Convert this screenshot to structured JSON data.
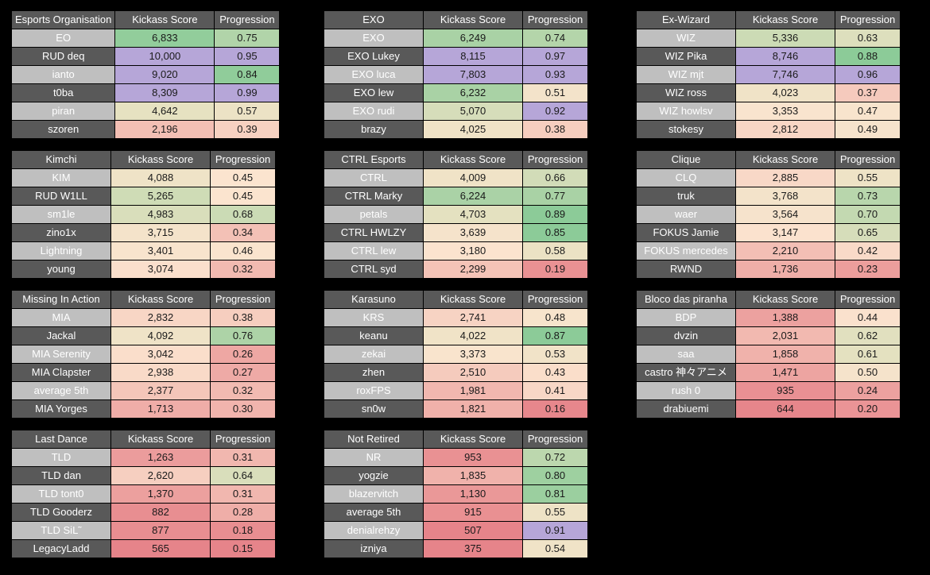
{
  "headers": {
    "score": "Kickass Score",
    "progression": "Progression"
  },
  "colors": {
    "low_red": "#e6848a",
    "mid_peach": "#fbe4cf",
    "mid_tan": "#e8e2c2",
    "green": "#8ccb98",
    "purple": "#b6a6d8"
  },
  "tables": [
    {
      "team": "Esports Organisation",
      "rows": [
        {
          "name": "EO",
          "score": "6,833",
          "prog": "0.75"
        },
        {
          "name": "RUD deq",
          "score": "10,000",
          "prog": "0.95"
        },
        {
          "name": "ianto",
          "score": "9,020",
          "prog": "0.84"
        },
        {
          "name": "t0ba",
          "score": "8,309",
          "prog": "0.99"
        },
        {
          "name": "piran",
          "score": "4,642",
          "prog": "0.57"
        },
        {
          "name": "szoren",
          "score": "2,196",
          "prog": "0.39"
        }
      ]
    },
    {
      "team": "EXO",
      "rows": [
        {
          "name": "EXO",
          "score": "6,249",
          "prog": "0.74"
        },
        {
          "name": "EXO Lukey",
          "score": "8,115",
          "prog": "0.97"
        },
        {
          "name": "EXO luca",
          "score": "7,803",
          "prog": "0.93"
        },
        {
          "name": "EXO lew",
          "score": "6,232",
          "prog": "0.51"
        },
        {
          "name": "EXO rudi",
          "score": "5,070",
          "prog": "0.92"
        },
        {
          "name": "brazy",
          "score": "4,025",
          "prog": "0.38"
        }
      ]
    },
    {
      "team": "Ex-Wizard",
      "rows": [
        {
          "name": "WIZ",
          "score": "5,336",
          "prog": "0.63"
        },
        {
          "name": "WIZ Pika",
          "score": "8,746",
          "prog": "0.88"
        },
        {
          "name": "WIZ mjt",
          "score": "7,746",
          "prog": "0.96"
        },
        {
          "name": "WIZ ross",
          "score": "4,023",
          "prog": "0.37"
        },
        {
          "name": "WIZ howlsv",
          "score": "3,353",
          "prog": "0.47"
        },
        {
          "name": "stokesy",
          "score": "2,812",
          "prog": "0.49"
        }
      ]
    },
    {
      "team": "Kimchi",
      "rows": [
        {
          "name": "KIM",
          "score": "4,088",
          "prog": "0.45"
        },
        {
          "name": "RUD W1LL",
          "score": "5,265",
          "prog": "0.45"
        },
        {
          "name": "sm1le",
          "score": "4,983",
          "prog": "0.68"
        },
        {
          "name": "zino1x",
          "score": "3,715",
          "prog": "0.34"
        },
        {
          "name": "Lightning",
          "score": "3,401",
          "prog": "0.46"
        },
        {
          "name": "young",
          "score": "3,074",
          "prog": "0.32"
        }
      ]
    },
    {
      "team": "CTRL Esports",
      "rows": [
        {
          "name": "CTRL",
          "score": "4,009",
          "prog": "0.66"
        },
        {
          "name": "CTRL Marky",
          "score": "6,224",
          "prog": "0.77"
        },
        {
          "name": "petals",
          "score": "4,703",
          "prog": "0.89"
        },
        {
          "name": "CTRL HWLZY",
          "score": "3,639",
          "prog": "0.85"
        },
        {
          "name": "CTRL lew",
          "score": "3,180",
          "prog": "0.58"
        },
        {
          "name": "CTRL syd",
          "score": "2,299",
          "prog": "0.19"
        }
      ]
    },
    {
      "team": "Clique",
      "rows": [
        {
          "name": "CLQ",
          "score": "2,885",
          "prog": "0.55"
        },
        {
          "name": "truk",
          "score": "3,768",
          "prog": "0.73"
        },
        {
          "name": "waer",
          "score": "3,564",
          "prog": "0.70"
        },
        {
          "name": "FOKUS Jamie",
          "score": "3,147",
          "prog": "0.65"
        },
        {
          "name": "FOKUS mercedes",
          "score": "2,210",
          "prog": "0.42"
        },
        {
          "name": "RWND",
          "score": "1,736",
          "prog": "0.23"
        }
      ]
    },
    {
      "team": "Missing In Action",
      "rows": [
        {
          "name": "MIA",
          "score": "2,832",
          "prog": "0.38"
        },
        {
          "name": "Jackal",
          "score": "4,092",
          "prog": "0.76"
        },
        {
          "name": "MIA Serenity",
          "score": "3,042",
          "prog": "0.26"
        },
        {
          "name": "MIA Clapster",
          "score": "2,938",
          "prog": "0.27"
        },
        {
          "name": "average 5th",
          "score": "2,377",
          "prog": "0.32"
        },
        {
          "name": "MIA Yorges",
          "score": "1,713",
          "prog": "0.30"
        }
      ]
    },
    {
      "team": "Karasuno",
      "rows": [
        {
          "name": "KRS",
          "score": "2,741",
          "prog": "0.48"
        },
        {
          "name": "keanu",
          "score": "4,022",
          "prog": "0.87"
        },
        {
          "name": "zekai",
          "score": "3,373",
          "prog": "0.53"
        },
        {
          "name": "zhen",
          "score": "2,510",
          "prog": "0.43"
        },
        {
          "name": "roxFPS",
          "score": "1,981",
          "prog": "0.41"
        },
        {
          "name": "sn0w",
          "score": "1,821",
          "prog": "0.16"
        }
      ]
    },
    {
      "team": "Bloco das piranha",
      "rows": [
        {
          "name": "BDP",
          "score": "1,388",
          "prog": "0.44"
        },
        {
          "name": "dvzin",
          "score": "2,031",
          "prog": "0.62"
        },
        {
          "name": "saa",
          "score": "1,858",
          "prog": "0.61"
        },
        {
          "name": "castro 神々アニメ",
          "score": "1,471",
          "prog": "0.50"
        },
        {
          "name": "rush 0",
          "score": "935",
          "prog": "0.24"
        },
        {
          "name": "drabiuemi",
          "score": "644",
          "prog": "0.20"
        }
      ]
    },
    {
      "team": "Last Dance",
      "rows": [
        {
          "name": "TLD",
          "score": "1,263",
          "prog": "0.31"
        },
        {
          "name": "TLD dan",
          "score": "2,620",
          "prog": "0.64"
        },
        {
          "name": "TLD tont0",
          "score": "1,370",
          "prog": "0.31"
        },
        {
          "name": "TLD Gooderz",
          "score": "882",
          "prog": "0.28"
        },
        {
          "name": "TLD SiL˜",
          "score": "877",
          "prog": "0.18"
        },
        {
          "name": "LegacyLadd",
          "score": "565",
          "prog": "0.15"
        }
      ]
    },
    {
      "team": "Not Retired",
      "rows": [
        {
          "name": "NR",
          "score": "953",
          "prog": "0.72"
        },
        {
          "name": "yogzie",
          "score": "1,835",
          "prog": "0.80"
        },
        {
          "name": "blazervitch",
          "score": "1,130",
          "prog": "0.81"
        },
        {
          "name": "average 5th",
          "score": "915",
          "prog": "0.55"
        },
        {
          "name": "denialrehzy",
          "score": "507",
          "prog": "0.91"
        },
        {
          "name": "izniya",
          "score": "375",
          "prog": "0.54"
        }
      ]
    }
  ]
}
